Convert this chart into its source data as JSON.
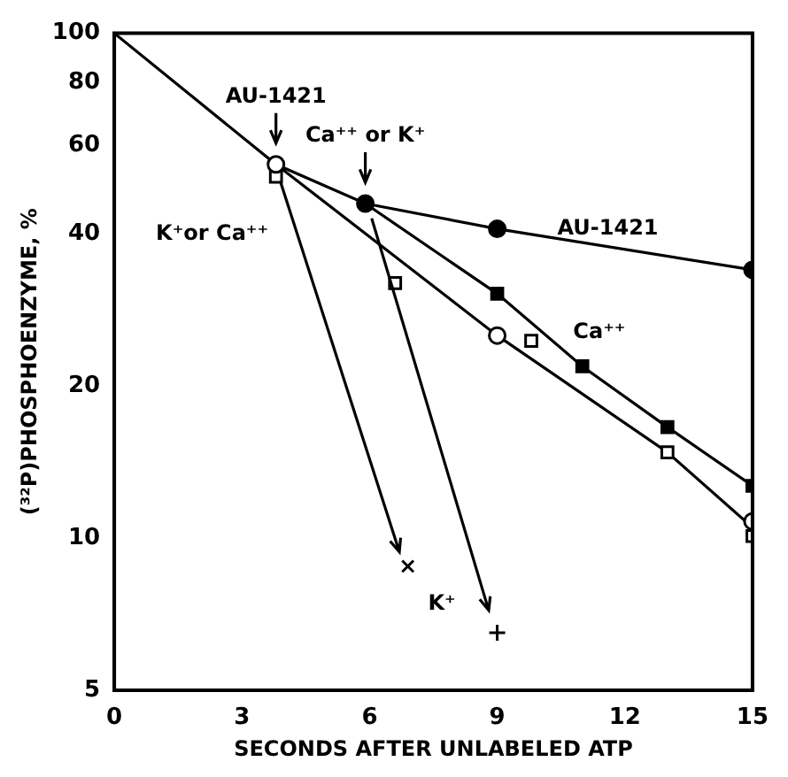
{
  "chart_data": {
    "type": "line",
    "xlabel": "SECONDS AFTER UNLABELED ATP",
    "ylabel": "(³²P)PHOSPHOENZYME, %",
    "log": "y",
    "grid": false,
    "legend": false,
    "xlim": [
      0,
      15
    ],
    "xticks": [
      0,
      3,
      6,
      9,
      12,
      15
    ],
    "ylim": [
      5,
      100
    ],
    "yticks": [
      5,
      10,
      20,
      40,
      60,
      80,
      100
    ],
    "series": [
      {
        "color": "#000000",
        "marker": "none",
        "x": [
          0,
          3.8,
          5.9,
          9,
          15
        ],
        "values": [
          100,
          55,
          46,
          41,
          34
        ]
      },
      {
        "color": "#000000",
        "marker": "none",
        "x": [
          3.8,
          9,
          13,
          15
        ],
        "values": [
          55,
          25.2,
          14.8,
          10.5
        ]
      },
      {
        "color": "#000000",
        "marker": "none",
        "x": [
          5.9,
          9,
          11,
          13,
          15
        ],
        "values": [
          46,
          30.5,
          21.9,
          16.6,
          12.7
        ]
      },
      {
        "type": "scatter",
        "color": "#ffffff",
        "marker": "circle",
        "x": [
          3.8,
          9,
          15
        ],
        "values": [
          55,
          25.2,
          10.8
        ]
      },
      {
        "type": "scatter",
        "color": "#000000",
        "marker": "circle",
        "x": [
          5.9,
          9,
          15
        ],
        "values": [
          46,
          41,
          34
        ]
      },
      {
        "type": "scatter",
        "color": "#000000",
        "marker": "square",
        "x": [
          9,
          11,
          13,
          15
        ],
        "values": [
          30.5,
          21.9,
          16.6,
          12.7
        ]
      },
      {
        "type": "scatter",
        "color": "#ffffff",
        "marker": "square",
        "x": [
          3.8,
          6.6,
          9.8,
          13,
          15
        ],
        "values": [
          52,
          32,
          24.6,
          14.8,
          10.1
        ]
      },
      {
        "type": "scatter",
        "color": "#000000",
        "marker": "cross",
        "x": [
          6.9
        ],
        "values": [
          8.8
        ]
      },
      {
        "type": "scatter",
        "color": "#000000",
        "marker": "plus",
        "x": [
          9
        ],
        "values": [
          6.5
        ]
      }
    ],
    "annotations": [
      {
        "text": "AU-1421",
        "x": 3.8,
        "y": 55
      },
      {
        "text": "Ca⁺⁺ or K⁺",
        "x": 5.9,
        "y": 46
      },
      "K⁺or Ca⁺⁺",
      "AU-1421",
      "Ca⁺⁺",
      "K⁺"
    ]
  }
}
